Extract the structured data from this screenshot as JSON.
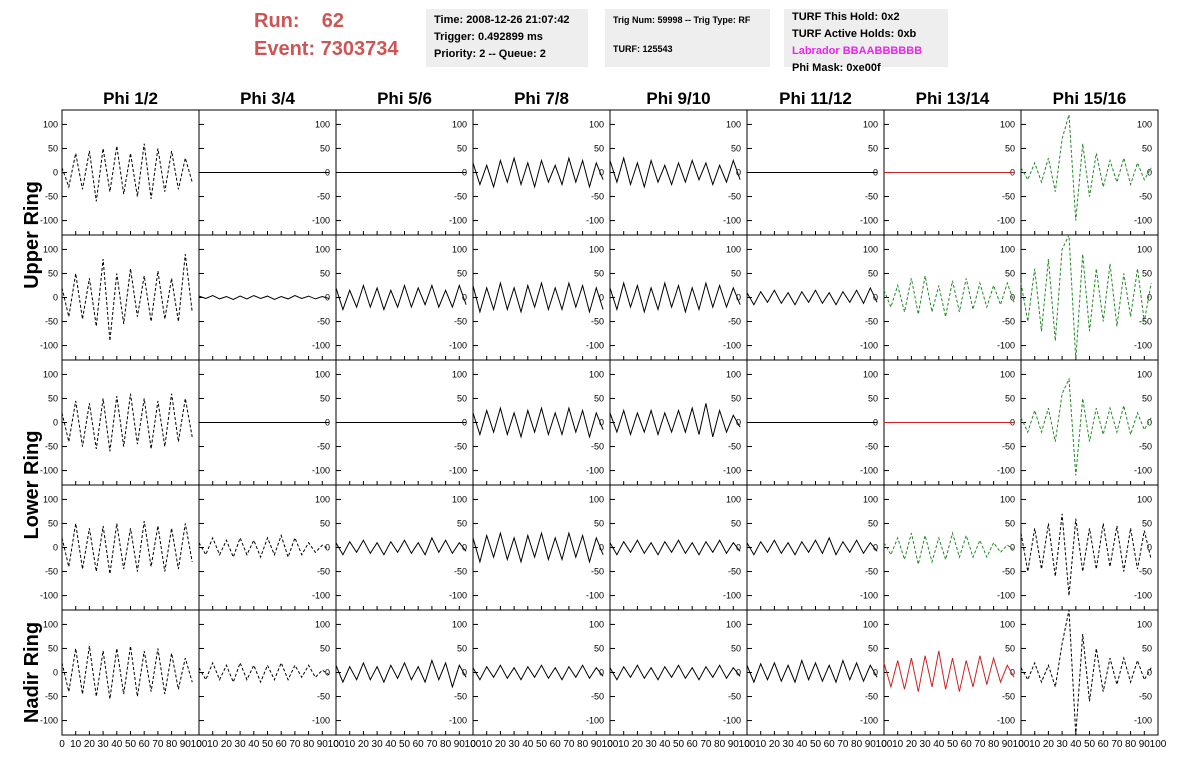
{
  "header": {
    "run": "Run:    62",
    "event": "Event: 7303734",
    "time_box": [
      "Time: 2008-12-26 21:07:42",
      "Trigger: 0.492899 ms",
      "Priority: 2 -- Queue: 2"
    ],
    "trig_box": [
      "Trig Num: 59998 -- Trig Type: RF",
      "TURF: 125543"
    ],
    "turf_box": [
      "TURF This Hold: 0x2",
      "TURF Active Holds: 0xb",
      "Labrador BBAABBBBBB",
      "Phi Mask: 0xe00f"
    ]
  },
  "chart_data": {
    "type": "line",
    "columns": [
      "Phi 1/2",
      "Phi 3/4",
      "Phi 5/6",
      "Phi 7/8",
      "Phi 9/10",
      "Phi 11/12",
      "Phi 13/14",
      "Phi 15/16"
    ],
    "row_labels": [
      "Upper Ring",
      "Lower Ring",
      "Nadir Ring"
    ],
    "x": [
      0,
      5,
      10,
      15,
      20,
      25,
      30,
      35,
      40,
      45,
      50,
      55,
      60,
      65,
      70,
      75,
      80,
      85,
      90,
      95
    ],
    "xlim": [
      0,
      100
    ],
    "xticks": [
      0,
      10,
      20,
      30,
      40,
      50,
      60,
      70,
      80,
      90,
      100
    ],
    "ylim": [
      -130,
      130
    ],
    "yticks": [
      -100,
      -50,
      0,
      50,
      100
    ],
    "panels": [
      {
        "color": "#000000",
        "dashed": true,
        "values": [
          10,
          -30,
          40,
          -35,
          45,
          -60,
          50,
          -40,
          55,
          -45,
          40,
          -50,
          60,
          -55,
          50,
          -40,
          45,
          -35,
          30,
          -20
        ]
      },
      {
        "color": "#000000",
        "dashed": false,
        "values": [
          0,
          0,
          0,
          0,
          0,
          0,
          0,
          0,
          0,
          0,
          0,
          0,
          0,
          0,
          0,
          0,
          0,
          0,
          0,
          0
        ]
      },
      {
        "color": "#000000",
        "dashed": false,
        "values": [
          0,
          0,
          0,
          0,
          0,
          0,
          0,
          0,
          0,
          0,
          0,
          0,
          0,
          0,
          0,
          0,
          0,
          0,
          0,
          0
        ]
      },
      {
        "color": "#000000",
        "dashed": false,
        "values": [
          20,
          -25,
          15,
          -30,
          25,
          -20,
          30,
          -25,
          20,
          -30,
          25,
          -20,
          15,
          -25,
          30,
          -20,
          25,
          -30,
          20,
          -15
        ]
      },
      {
        "color": "#000000",
        "dashed": false,
        "values": [
          25,
          -20,
          30,
          -25,
          20,
          -30,
          25,
          -20,
          15,
          -25,
          20,
          -20,
          25,
          -15,
          20,
          -25,
          15,
          -20,
          25,
          -15
        ]
      },
      {
        "color": "#000000",
        "dashed": false,
        "values": [
          0,
          0,
          0,
          0,
          0,
          0,
          0,
          0,
          0,
          0,
          0,
          0,
          0,
          0,
          0,
          0,
          0,
          0,
          0,
          0
        ]
      },
      {
        "color": "#cc2222",
        "dashed": false,
        "values": [
          0,
          0,
          0,
          0,
          0,
          0,
          0,
          0,
          0,
          0,
          0,
          0,
          0,
          0,
          0,
          0,
          0,
          0,
          0,
          0
        ]
      },
      {
        "color": "#228822",
        "dashed": true,
        "values": [
          10,
          -15,
          20,
          -20,
          30,
          -40,
          70,
          120,
          -100,
          60,
          -50,
          40,
          -30,
          25,
          -20,
          30,
          -25,
          20,
          -15,
          10
        ]
      },
      {
        "color": "#000000",
        "dashed": true,
        "values": [
          20,
          -40,
          50,
          -45,
          40,
          -60,
          80,
          -90,
          50,
          -55,
          60,
          -40,
          45,
          -50,
          55,
          -45,
          40,
          -50,
          90,
          -30
        ]
      },
      {
        "color": "#000000",
        "dashed": false,
        "values": [
          3,
          -2,
          4,
          -3,
          2,
          -4,
          3,
          -3,
          4,
          -2,
          3,
          -4,
          2,
          -3,
          4,
          -2,
          3,
          -3,
          2,
          -2
        ]
      },
      {
        "color": "#000000",
        "dashed": false,
        "values": [
          20,
          -25,
          15,
          -20,
          25,
          -20,
          20,
          -25,
          15,
          -20,
          25,
          -20,
          20,
          -15,
          25,
          -20,
          15,
          -20,
          25,
          -15
        ]
      },
      {
        "color": "#000000",
        "dashed": false,
        "values": [
          25,
          -30,
          20,
          -25,
          30,
          -25,
          20,
          -30,
          25,
          -20,
          30,
          -25,
          20,
          -25,
          30,
          -20,
          25,
          -30,
          20,
          -25
        ]
      },
      {
        "color": "#000000",
        "dashed": false,
        "values": [
          20,
          -25,
          30,
          -20,
          25,
          -30,
          20,
          -25,
          30,
          -20,
          25,
          -30,
          20,
          -25,
          30,
          -20,
          25,
          -20,
          20,
          -15
        ]
      },
      {
        "color": "#000000",
        "dashed": false,
        "values": [
          10,
          -15,
          12,
          -10,
          15,
          -12,
          10,
          -15,
          12,
          -10,
          15,
          -12,
          10,
          -15,
          12,
          -10,
          15,
          -12,
          20,
          -10
        ]
      },
      {
        "color": "#228822",
        "dashed": true,
        "values": [
          15,
          -20,
          25,
          -30,
          40,
          -35,
          45,
          -30,
          25,
          -40,
          35,
          -30,
          40,
          -25,
          30,
          -20,
          25,
          -15,
          30,
          -10
        ]
      },
      {
        "color": "#228822",
        "dashed": true,
        "values": [
          30,
          -50,
          60,
          -70,
          80,
          -90,
          100,
          130,
          -130,
          90,
          -70,
          60,
          -50,
          70,
          -60,
          50,
          -40,
          60,
          -50,
          30
        ]
      },
      {
        "color": "#000000",
        "dashed": true,
        "values": [
          20,
          -40,
          45,
          -50,
          40,
          -55,
          50,
          -60,
          55,
          -50,
          60,
          -45,
          50,
          -55,
          45,
          -50,
          60,
          -40,
          50,
          -30
        ]
      },
      {
        "color": "#000000",
        "dashed": false,
        "values": [
          0,
          0,
          0,
          0,
          0,
          0,
          0,
          0,
          0,
          0,
          0,
          0,
          0,
          0,
          0,
          0,
          0,
          0,
          0,
          0
        ]
      },
      {
        "color": "#000000",
        "dashed": false,
        "values": [
          0,
          0,
          0,
          0,
          0,
          0,
          0,
          0,
          0,
          0,
          0,
          0,
          0,
          0,
          0,
          0,
          0,
          0,
          0,
          0
        ]
      },
      {
        "color": "#000000",
        "dashed": false,
        "values": [
          20,
          -25,
          25,
          -20,
          30,
          -25,
          20,
          -30,
          25,
          -20,
          30,
          -25,
          20,
          -25,
          30,
          -20,
          25,
          -30,
          20,
          -15
        ]
      },
      {
        "color": "#000000",
        "dashed": false,
        "values": [
          20,
          -20,
          25,
          -25,
          20,
          -20,
          25,
          -25,
          20,
          -20,
          25,
          -20,
          30,
          -25,
          40,
          -30,
          25,
          -20,
          15,
          -10
        ]
      },
      {
        "color": "#000000",
        "dashed": false,
        "values": [
          0,
          0,
          0,
          0,
          0,
          0,
          0,
          0,
          0,
          0,
          0,
          0,
          0,
          0,
          0,
          0,
          0,
          0,
          0,
          0
        ]
      },
      {
        "color": "#cc2222",
        "dashed": false,
        "values": [
          0,
          0,
          0,
          0,
          0,
          0,
          0,
          0,
          0,
          0,
          0,
          0,
          0,
          0,
          0,
          0,
          0,
          0,
          0,
          0
        ]
      },
      {
        "color": "#228822",
        "dashed": true,
        "values": [
          10,
          -20,
          25,
          -20,
          30,
          -40,
          60,
          90,
          -110,
          50,
          -40,
          30,
          -25,
          30,
          -20,
          35,
          -25,
          20,
          -15,
          10
        ]
      },
      {
        "color": "#000000",
        "dashed": true,
        "values": [
          20,
          -40,
          50,
          -45,
          40,
          -50,
          45,
          -55,
          50,
          -45,
          40,
          -50,
          55,
          -40,
          45,
          -50,
          40,
          -45,
          50,
          -30
        ]
      },
      {
        "color": "#000000",
        "dashed": true,
        "values": [
          10,
          -15,
          20,
          -15,
          15,
          -20,
          20,
          -15,
          15,
          -20,
          20,
          -15,
          25,
          -20,
          20,
          -15,
          10,
          -10,
          5,
          -5
        ]
      },
      {
        "color": "#000000",
        "dashed": false,
        "values": [
          10,
          -15,
          12,
          -10,
          15,
          -12,
          10,
          -15,
          12,
          -10,
          15,
          -12,
          10,
          -15,
          20,
          -10,
          15,
          -12,
          10,
          -8
        ]
      },
      {
        "color": "#000000",
        "dashed": false,
        "values": [
          20,
          -30,
          25,
          -20,
          30,
          -25,
          20,
          -30,
          25,
          -20,
          30,
          -25,
          20,
          -25,
          30,
          -20,
          25,
          -30,
          20,
          -15
        ]
      },
      {
        "color": "#000000",
        "dashed": false,
        "values": [
          10,
          -15,
          12,
          -10,
          15,
          -12,
          10,
          -15,
          12,
          -10,
          15,
          -12,
          10,
          -15,
          12,
          -10,
          15,
          -12,
          10,
          -8
        ]
      },
      {
        "color": "#000000",
        "dashed": false,
        "values": [
          10,
          -15,
          12,
          -10,
          15,
          -12,
          10,
          -15,
          12,
          -10,
          15,
          -12,
          20,
          -15,
          12,
          -10,
          15,
          -12,
          10,
          -8
        ]
      },
      {
        "color": "#228822",
        "dashed": true,
        "values": [
          10,
          -15,
          20,
          -25,
          30,
          -35,
          25,
          -30,
          20,
          -25,
          30,
          -20,
          25,
          -20,
          15,
          -20,
          10,
          -10,
          5,
          -5
        ]
      },
      {
        "color": "#000000",
        "dashed": true,
        "values": [
          30,
          -50,
          40,
          -45,
          50,
          -60,
          70,
          -100,
          60,
          -50,
          40,
          -45,
          50,
          -40,
          45,
          -50,
          40,
          -45,
          35,
          -25
        ]
      },
      {
        "color": "#000000",
        "dashed": true,
        "values": [
          20,
          -40,
          50,
          -45,
          55,
          -50,
          45,
          -55,
          50,
          -45,
          55,
          -50,
          45,
          -40,
          50,
          -45,
          40,
          -35,
          30,
          -20
        ]
      },
      {
        "color": "#000000",
        "dashed": true,
        "values": [
          10,
          -15,
          20,
          -15,
          15,
          -20,
          20,
          -15,
          15,
          -20,
          15,
          -15,
          20,
          -15,
          15,
          -10,
          15,
          -10,
          5,
          -5
        ]
      },
      {
        "color": "#000000",
        "dashed": false,
        "values": [
          15,
          -20,
          12,
          -15,
          20,
          -15,
          12,
          -20,
          15,
          -12,
          20,
          -15,
          12,
          -20,
          25,
          -15,
          20,
          -30,
          15,
          -10
        ]
      },
      {
        "color": "#000000",
        "dashed": false,
        "values": [
          10,
          -15,
          12,
          -10,
          15,
          -12,
          10,
          -15,
          12,
          -10,
          15,
          -12,
          10,
          -15,
          12,
          -10,
          15,
          -12,
          10,
          -8
        ]
      },
      {
        "color": "#000000",
        "dashed": false,
        "values": [
          10,
          -15,
          12,
          -10,
          15,
          -12,
          10,
          -15,
          12,
          -10,
          15,
          -12,
          10,
          -15,
          12,
          -10,
          15,
          -12,
          10,
          -8
        ]
      },
      {
        "color": "#000000",
        "dashed": false,
        "values": [
          15,
          -20,
          18,
          -15,
          20,
          -18,
          15,
          -20,
          25,
          -15,
          20,
          -18,
          15,
          -20,
          25,
          -15,
          20,
          -18,
          15,
          -10
        ]
      },
      {
        "color": "#cc2222",
        "dashed": false,
        "values": [
          20,
          -30,
          25,
          -35,
          30,
          -40,
          35,
          -30,
          45,
          -35,
          30,
          -40,
          25,
          -30,
          35,
          -25,
          30,
          -20,
          15,
          -10
        ]
      },
      {
        "color": "#000000",
        "dashed": true,
        "values": [
          10,
          -15,
          20,
          -20,
          15,
          -30,
          60,
          130,
          -130,
          80,
          -60,
          50,
          -40,
          30,
          -25,
          30,
          -20,
          25,
          -15,
          10
        ]
      }
    ]
  }
}
